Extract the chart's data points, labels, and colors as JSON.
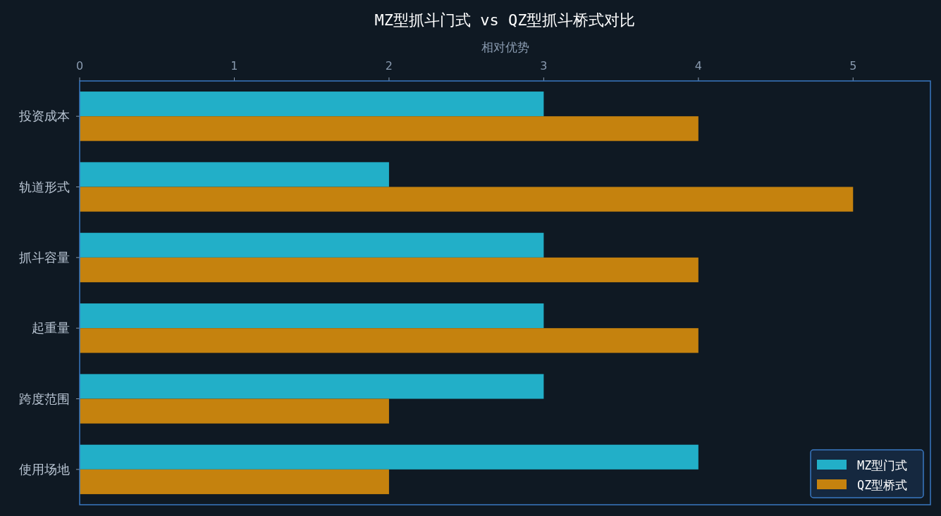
{
  "chart_data": {
    "type": "bar",
    "orientation": "horizontal",
    "title": "MZ型抓斗门式 vs QZ型抓斗桥式对比",
    "xlabel": "相对优势",
    "categories": [
      "投资成本",
      "轨道形式",
      "抓斗容量",
      "起重量",
      "跨度范围",
      "使用场地"
    ],
    "series": [
      {
        "name": "MZ型门式",
        "color": "#22afc8",
        "values": [
          3,
          2,
          3,
          3,
          3,
          4
        ]
      },
      {
        "name": "QZ型桥式",
        "color": "#c5820e",
        "values": [
          4,
          5,
          4,
          4,
          2,
          2
        ]
      }
    ],
    "xlim": [
      0,
      5.5
    ],
    "xticks": [
      0,
      1,
      2,
      3,
      4,
      5
    ],
    "legend": "bottom right"
  }
}
